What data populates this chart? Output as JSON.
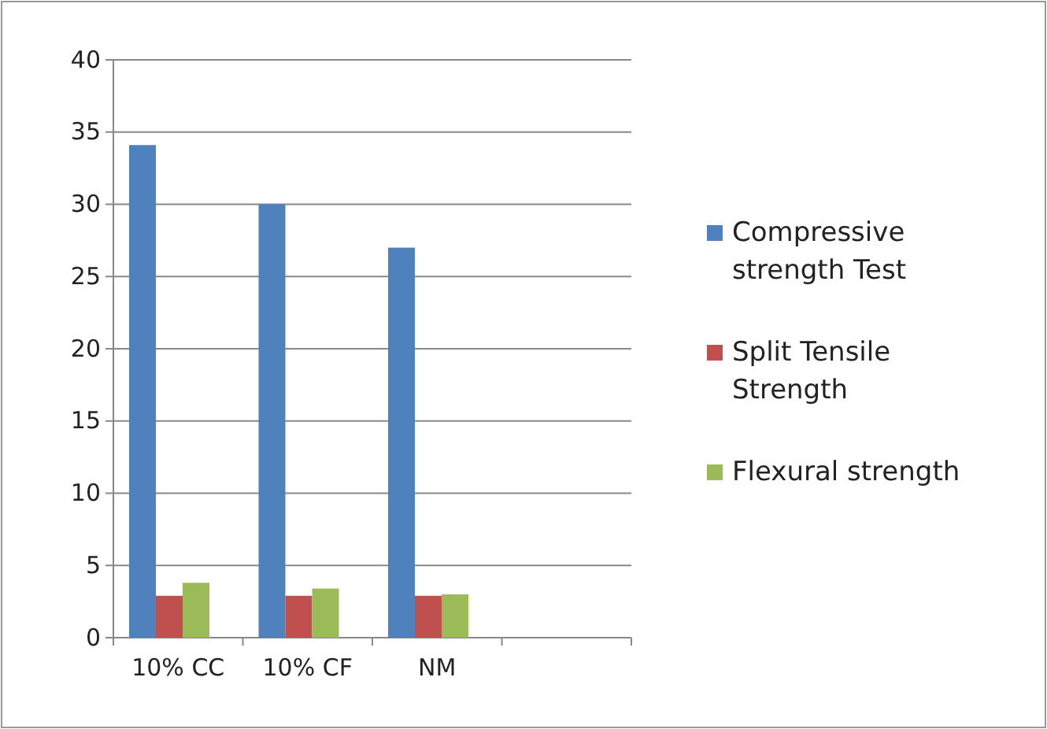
{
  "chart_data": {
    "type": "bar",
    "categories": [
      "10% CC",
      "10% CF",
      "NM",
      null
    ],
    "series": [
      {
        "name": "Compressive strength Test",
        "color": "#4f81bd",
        "values": [
          34.1,
          30.0,
          27.0,
          null
        ]
      },
      {
        "name": "Split Tensile Strength",
        "color": "#c0504d",
        "values": [
          2.9,
          2.9,
          2.9,
          null
        ]
      },
      {
        "name": "Flexural strength",
        "color": "#9bbb59",
        "values": [
          3.8,
          3.4,
          3.0,
          null
        ]
      }
    ],
    "ylim": [
      0,
      40
    ],
    "yticks": [
      0,
      5,
      10,
      15,
      20,
      25,
      30,
      35,
      40
    ],
    "grid": "y",
    "legend": "right"
  }
}
